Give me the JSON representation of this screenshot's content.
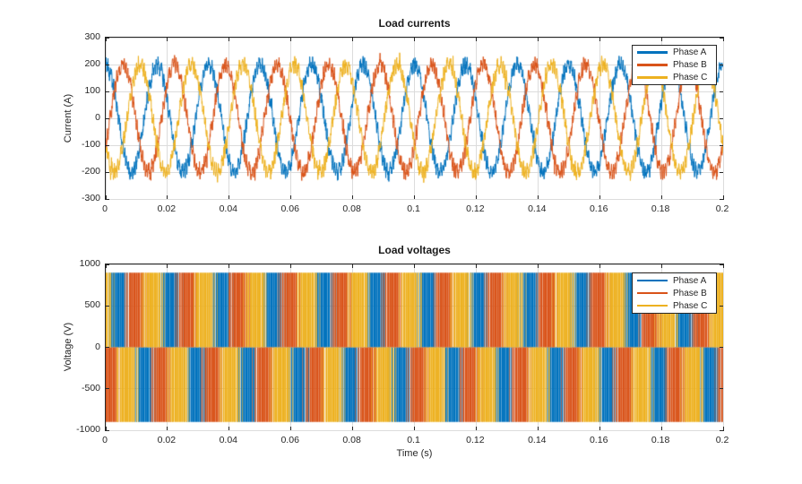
{
  "figure": {
    "background": "#ffffff",
    "axis_color": "#262626",
    "grid_color": "#dcdcdc",
    "text_color": "#262626"
  },
  "chart_data": [
    {
      "type": "line",
      "title": "Load currents",
      "xlabel": "",
      "ylabel": "Current (A)",
      "xlim": [
        0,
        0.2
      ],
      "ylim": [
        -300,
        300
      ],
      "xticks": [
        0,
        0.02,
        0.04,
        0.06,
        0.08,
        0.1,
        0.12,
        0.14,
        0.16,
        0.18,
        0.2
      ],
      "yticks": [
        300,
        200,
        100,
        0,
        -100,
        -200,
        -300
      ],
      "grid": true,
      "legend_position": "northeast",
      "series": [
        {
          "name": "Phase A",
          "color": "#0072BD",
          "waveform": "sine",
          "amplitude": 200,
          "frequency_hz": 60,
          "phase_deg": 0,
          "ripple_amplitude": 18,
          "ripple_frequency_hz": 1350,
          "noise_amplitude": 36
        },
        {
          "name": "Phase B",
          "color": "#D95319",
          "waveform": "sine",
          "amplitude": 200,
          "frequency_hz": 60,
          "phase_deg": -120,
          "ripple_amplitude": 18,
          "ripple_frequency_hz": 1350,
          "noise_amplitude": 36
        },
        {
          "name": "Phase C",
          "color": "#EDB120",
          "waveform": "sine",
          "amplitude": 200,
          "frequency_hz": 60,
          "phase_deg": 120,
          "ripple_amplitude": 18,
          "ripple_frequency_hz": 1350,
          "noise_amplitude": 36
        }
      ]
    },
    {
      "type": "line",
      "title": "Load voltages",
      "xlabel": "Time (s)",
      "ylabel": "Voltage (V)",
      "xlim": [
        0,
        0.2
      ],
      "ylim": [
        -1000,
        1000
      ],
      "xticks": [
        0,
        0.02,
        0.04,
        0.06,
        0.08,
        0.1,
        0.12,
        0.14,
        0.16,
        0.18,
        0.2
      ],
      "yticks": [
        1000,
        500,
        0,
        -500,
        -1000
      ],
      "grid": true,
      "legend_position": "northeast",
      "series": [
        {
          "name": "Phase A",
          "color": "#0072BD",
          "waveform": "pwm3",
          "level": 900,
          "fundamental_hz": 60,
          "phase_deg": 0,
          "carrier_hz": 1350
        },
        {
          "name": "Phase B",
          "color": "#D95319",
          "waveform": "pwm3",
          "level": 900,
          "fundamental_hz": 60,
          "phase_deg": -120,
          "carrier_hz": 1350
        },
        {
          "name": "Phase C",
          "color": "#EDB120",
          "waveform": "pwm3",
          "level": 900,
          "fundamental_hz": 60,
          "phase_deg": 120,
          "carrier_hz": 1350
        }
      ]
    }
  ]
}
